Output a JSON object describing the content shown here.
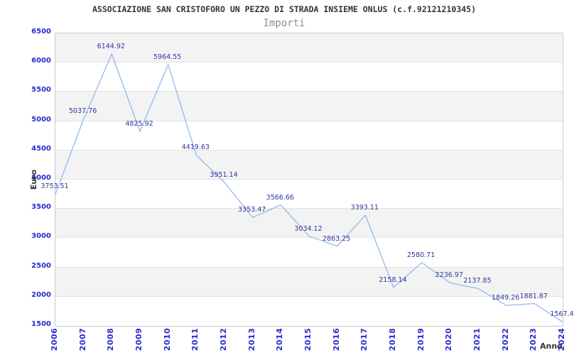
{
  "title": "ASSOCIAZIONE SAN CRISTOFORO UN PEZZO DI STRADA INSIEME ONLUS (c.f.92121210345)",
  "subtitle": "Importi",
  "chart_data": {
    "type": "line",
    "title": "ASSOCIAZIONE SAN CRISTOFORO UN PEZZO DI STRADA INSIEME ONLUS (c.f.92121210345)",
    "subtitle": "Importi",
    "xlabel": "Anno",
    "ylabel": "Euro",
    "categories": [
      "2006",
      "2007",
      "2008",
      "2009",
      "2010",
      "2011",
      "2012",
      "2013",
      "2014",
      "2015",
      "2016",
      "2017",
      "2018",
      "2019",
      "2020",
      "2021",
      "2022",
      "2023",
      "2024"
    ],
    "values": [
      3753.51,
      5037.76,
      6144.92,
      4825.92,
      5964.55,
      4419.63,
      3951.14,
      3353.47,
      3566.66,
      3034.12,
      2863.25,
      3393.11,
      2158.14,
      2580.71,
      2236.97,
      2137.85,
      1849.26,
      1881.87,
      1567.4
    ],
    "point_labels": [
      "3753.51",
      "5037.76",
      "6144.92",
      "4825.92",
      "5964.55",
      "4419.63",
      "3951.14",
      "3353.47",
      "3566.66",
      "3034.12",
      "2863.25",
      "3393.11",
      "2158.14",
      "2580.71",
      "2236.97",
      "2137.85",
      "1849.26",
      "1881.87",
      "1567.4"
    ],
    "ylim": [
      1500,
      6500
    ],
    "ytick_step": 500,
    "legend": "none",
    "grid": "horizontal-striped-bands",
    "colors": {
      "line": "#90bbea",
      "axis_ticks": "#2b2bd0",
      "point_labels": "#3434a0",
      "band_gray": "#f3f3f3",
      "plot_border": "#c9c9c9"
    }
  }
}
